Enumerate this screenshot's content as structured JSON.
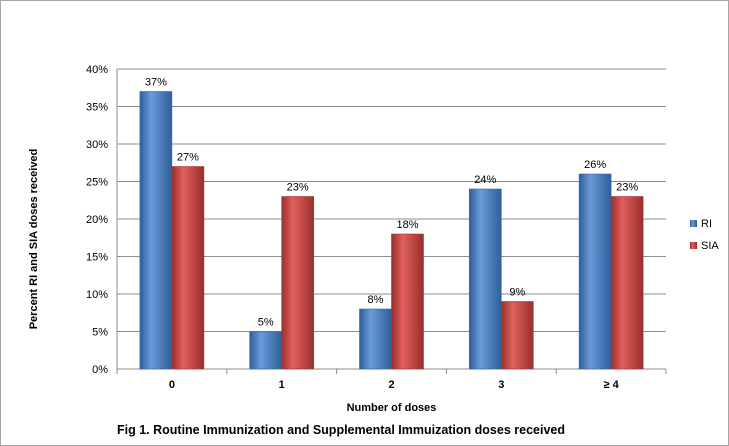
{
  "chart_data": {
    "type": "bar",
    "title": "",
    "caption": "Fig 1. Routine Immunization and Supplemental Immuization doses received",
    "xlabel": "Number of doses",
    "ylabel": "Percent RI and SIA doses received",
    "categories": [
      "0",
      "1",
      "2",
      "3",
      "≥ 4"
    ],
    "series": [
      {
        "name": "RI",
        "color": "#4f81bd",
        "values": [
          37,
          5,
          8,
          24,
          26
        ],
        "labels": [
          "37%",
          "5%",
          "8%",
          "24%",
          "26%"
        ]
      },
      {
        "name": "SIA",
        "color": "#c0504d",
        "values": [
          27,
          23,
          18,
          9,
          23
        ],
        "labels": [
          "27%",
          "23%",
          "18%",
          "9%",
          "23%"
        ]
      }
    ],
    "ylim": [
      0,
      40
    ],
    "yticks": [
      "0%",
      "5%",
      "10%",
      "15%",
      "20%",
      "25%",
      "30%",
      "35%",
      "40%"
    ],
    "grid": true,
    "legend_position": "right"
  }
}
